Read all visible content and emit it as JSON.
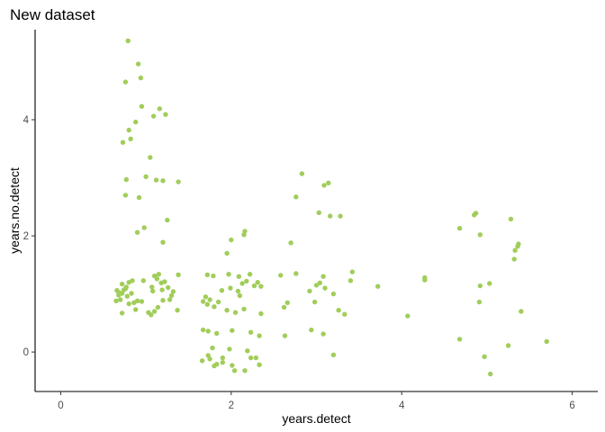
{
  "chart_data": {
    "type": "scatter",
    "title": "New dataset",
    "xlabel": "years.detect",
    "ylabel": "years.no.detect",
    "xlim": [
      -0.3,
      6.3
    ],
    "ylim": [
      -0.68,
      5.55
    ],
    "x_ticks": [
      0,
      2,
      4,
      6
    ],
    "x_tick_labels": [
      "0",
      "2",
      "4",
      "6"
    ],
    "y_ticks": [
      0,
      2,
      4
    ],
    "y_tick_labels": [
      "0",
      "2",
      "4"
    ],
    "grid": false,
    "legend": "none",
    "point_color": "#a1cd5a",
    "points": [
      [
        0.79,
        5.36
      ],
      [
        0.91,
        4.96
      ],
      [
        0.94,
        4.72
      ],
      [
        0.76,
        4.65
      ],
      [
        0.95,
        4.23
      ],
      [
        1.16,
        4.19
      ],
      [
        1.09,
        4.06
      ],
      [
        1.23,
        4.09
      ],
      [
        0.88,
        3.96
      ],
      [
        0.8,
        3.82
      ],
      [
        0.73,
        3.61
      ],
      [
        0.82,
        3.67
      ],
      [
        1.05,
        3.35
      ],
      [
        1.0,
        3.02
      ],
      [
        0.77,
        2.97
      ],
      [
        1.12,
        2.96
      ],
      [
        1.2,
        2.95
      ],
      [
        1.38,
        2.93
      ],
      [
        0.76,
        2.7
      ],
      [
        0.92,
        2.66
      ],
      [
        1.25,
        2.27
      ],
      [
        0.98,
        2.14
      ],
      [
        0.9,
        2.06
      ],
      [
        1.2,
        1.89
      ],
      [
        0.66,
        1.06
      ],
      [
        0.68,
        0.98
      ],
      [
        0.72,
        1.01
      ],
      [
        0.7,
        0.9
      ],
      [
        0.65,
        0.88
      ],
      [
        0.74,
        1.07
      ],
      [
        0.77,
        1.12
      ],
      [
        0.8,
        1.2
      ],
      [
        0.84,
        1.23
      ],
      [
        0.72,
        1.17
      ],
      [
        0.68,
        1.03
      ],
      [
        0.78,
        0.96
      ],
      [
        0.83,
        1.01
      ],
      [
        0.86,
        0.85
      ],
      [
        0.9,
        0.88
      ],
      [
        0.72,
        0.67
      ],
      [
        0.8,
        0.83
      ],
      [
        0.88,
        0.73
      ],
      [
        0.95,
        0.87
      ],
      [
        0.97,
        1.23
      ],
      [
        0.76,
        1.09
      ],
      [
        1.07,
        1.12
      ],
      [
        1.1,
        1.31
      ],
      [
        1.13,
        1.26
      ],
      [
        1.15,
        1.34
      ],
      [
        1.08,
        1.05
      ],
      [
        1.18,
        1.19
      ],
      [
        1.22,
        1.21
      ],
      [
        1.26,
        1.11
      ],
      [
        1.3,
        0.97
      ],
      [
        1.2,
        0.89
      ],
      [
        1.14,
        0.77
      ],
      [
        1.28,
        0.9
      ],
      [
        1.06,
        0.64
      ],
      [
        1.1,
        0.7
      ],
      [
        1.03,
        0.68
      ],
      [
        1.32,
        1.04
      ],
      [
        1.38,
        1.33
      ],
      [
        1.37,
        0.72
      ],
      [
        1.19,
        1.07
      ],
      [
        1.72,
        1.33
      ],
      [
        1.79,
        1.31
      ],
      [
        1.97,
        1.34
      ],
      [
        2.09,
        1.3
      ],
      [
        2.13,
        1.18
      ],
      [
        2.22,
        1.34
      ],
      [
        2.31,
        1.2
      ],
      [
        2.35,
        1.13
      ],
      [
        1.99,
        1.1
      ],
      [
        1.89,
        1.06
      ],
      [
        2.08,
        1.05
      ],
      [
        2.18,
        1.22
      ],
      [
        2.27,
        1.14
      ],
      [
        1.7,
        0.95
      ],
      [
        1.75,
        0.9
      ],
      [
        1.72,
        0.82
      ],
      [
        1.8,
        0.78
      ],
      [
        1.67,
        0.87
      ],
      [
        1.85,
        0.86
      ],
      [
        2.1,
        0.97
      ],
      [
        1.95,
        0.72
      ],
      [
        2.05,
        0.68
      ],
      [
        2.15,
        0.74
      ],
      [
        2.35,
        0.66
      ],
      [
        1.67,
        0.38
      ],
      [
        1.73,
        0.36
      ],
      [
        1.83,
        0.32
      ],
      [
        2.01,
        0.37
      ],
      [
        2.23,
        0.34
      ],
      [
        2.33,
        0.28
      ],
      [
        1.78,
        0.07
      ],
      [
        1.98,
        0.05
      ],
      [
        2.19,
        0.02
      ],
      [
        1.73,
        -0.06
      ],
      [
        1.75,
        -0.12
      ],
      [
        2.23,
        -0.1
      ],
      [
        1.66,
        -0.15
      ],
      [
        2.33,
        -0.22
      ],
      [
        1.83,
        -0.21
      ],
      [
        1.9,
        -0.18
      ],
      [
        2.01,
        -0.23
      ],
      [
        1.8,
        -0.24
      ],
      [
        2.16,
        -0.32
      ],
      [
        2.04,
        -0.32
      ],
      [
        2.29,
        -0.1
      ],
      [
        1.95,
        1.7
      ],
      [
        2.0,
        1.93
      ],
      [
        2.15,
        2.02
      ],
      [
        2.16,
        2.08
      ],
      [
        1.9,
        -0.1
      ],
      [
        2.83,
        3.07
      ],
      [
        3.14,
        2.91
      ],
      [
        3.09,
        2.87
      ],
      [
        2.76,
        2.67
      ],
      [
        3.03,
        2.4
      ],
      [
        3.16,
        2.34
      ],
      [
        3.28,
        2.34
      ],
      [
        2.7,
        1.88
      ],
      [
        2.58,
        1.32
      ],
      [
        2.76,
        1.35
      ],
      [
        2.92,
        1.05
      ],
      [
        3.0,
        1.15
      ],
      [
        3.04,
        1.19
      ],
      [
        3.08,
        1.3
      ],
      [
        3.1,
        1.1
      ],
      [
        3.2,
        1.0
      ],
      [
        3.26,
        0.72
      ],
      [
        3.33,
        0.65
      ],
      [
        2.94,
        0.38
      ],
      [
        3.08,
        0.31
      ],
      [
        2.63,
        0.28
      ],
      [
        2.66,
        0.85
      ],
      [
        2.62,
        0.77
      ],
      [
        2.98,
        0.86
      ],
      [
        3.4,
        1.23
      ],
      [
        3.42,
        1.38
      ],
      [
        3.2,
        -0.05
      ],
      [
        3.72,
        1.13
      ],
      [
        4.07,
        0.62
      ],
      [
        4.27,
        1.24
      ],
      [
        4.27,
        1.28
      ],
      [
        4.68,
        2.13
      ],
      [
        4.85,
        2.36
      ],
      [
        4.87,
        2.39
      ],
      [
        4.92,
        2.02
      ],
      [
        4.92,
        1.14
      ],
      [
        5.03,
        1.18
      ],
      [
        4.91,
        0.86
      ],
      [
        4.68,
        0.22
      ],
      [
        4.97,
        -0.08
      ],
      [
        5.04,
        -0.38
      ],
      [
        5.28,
        2.29
      ],
      [
        5.37,
        1.86
      ],
      [
        5.36,
        1.82
      ],
      [
        5.33,
        1.75
      ],
      [
        5.32,
        1.6
      ],
      [
        5.4,
        0.7
      ],
      [
        5.25,
        0.11
      ],
      [
        5.7,
        0.18
      ]
    ]
  }
}
